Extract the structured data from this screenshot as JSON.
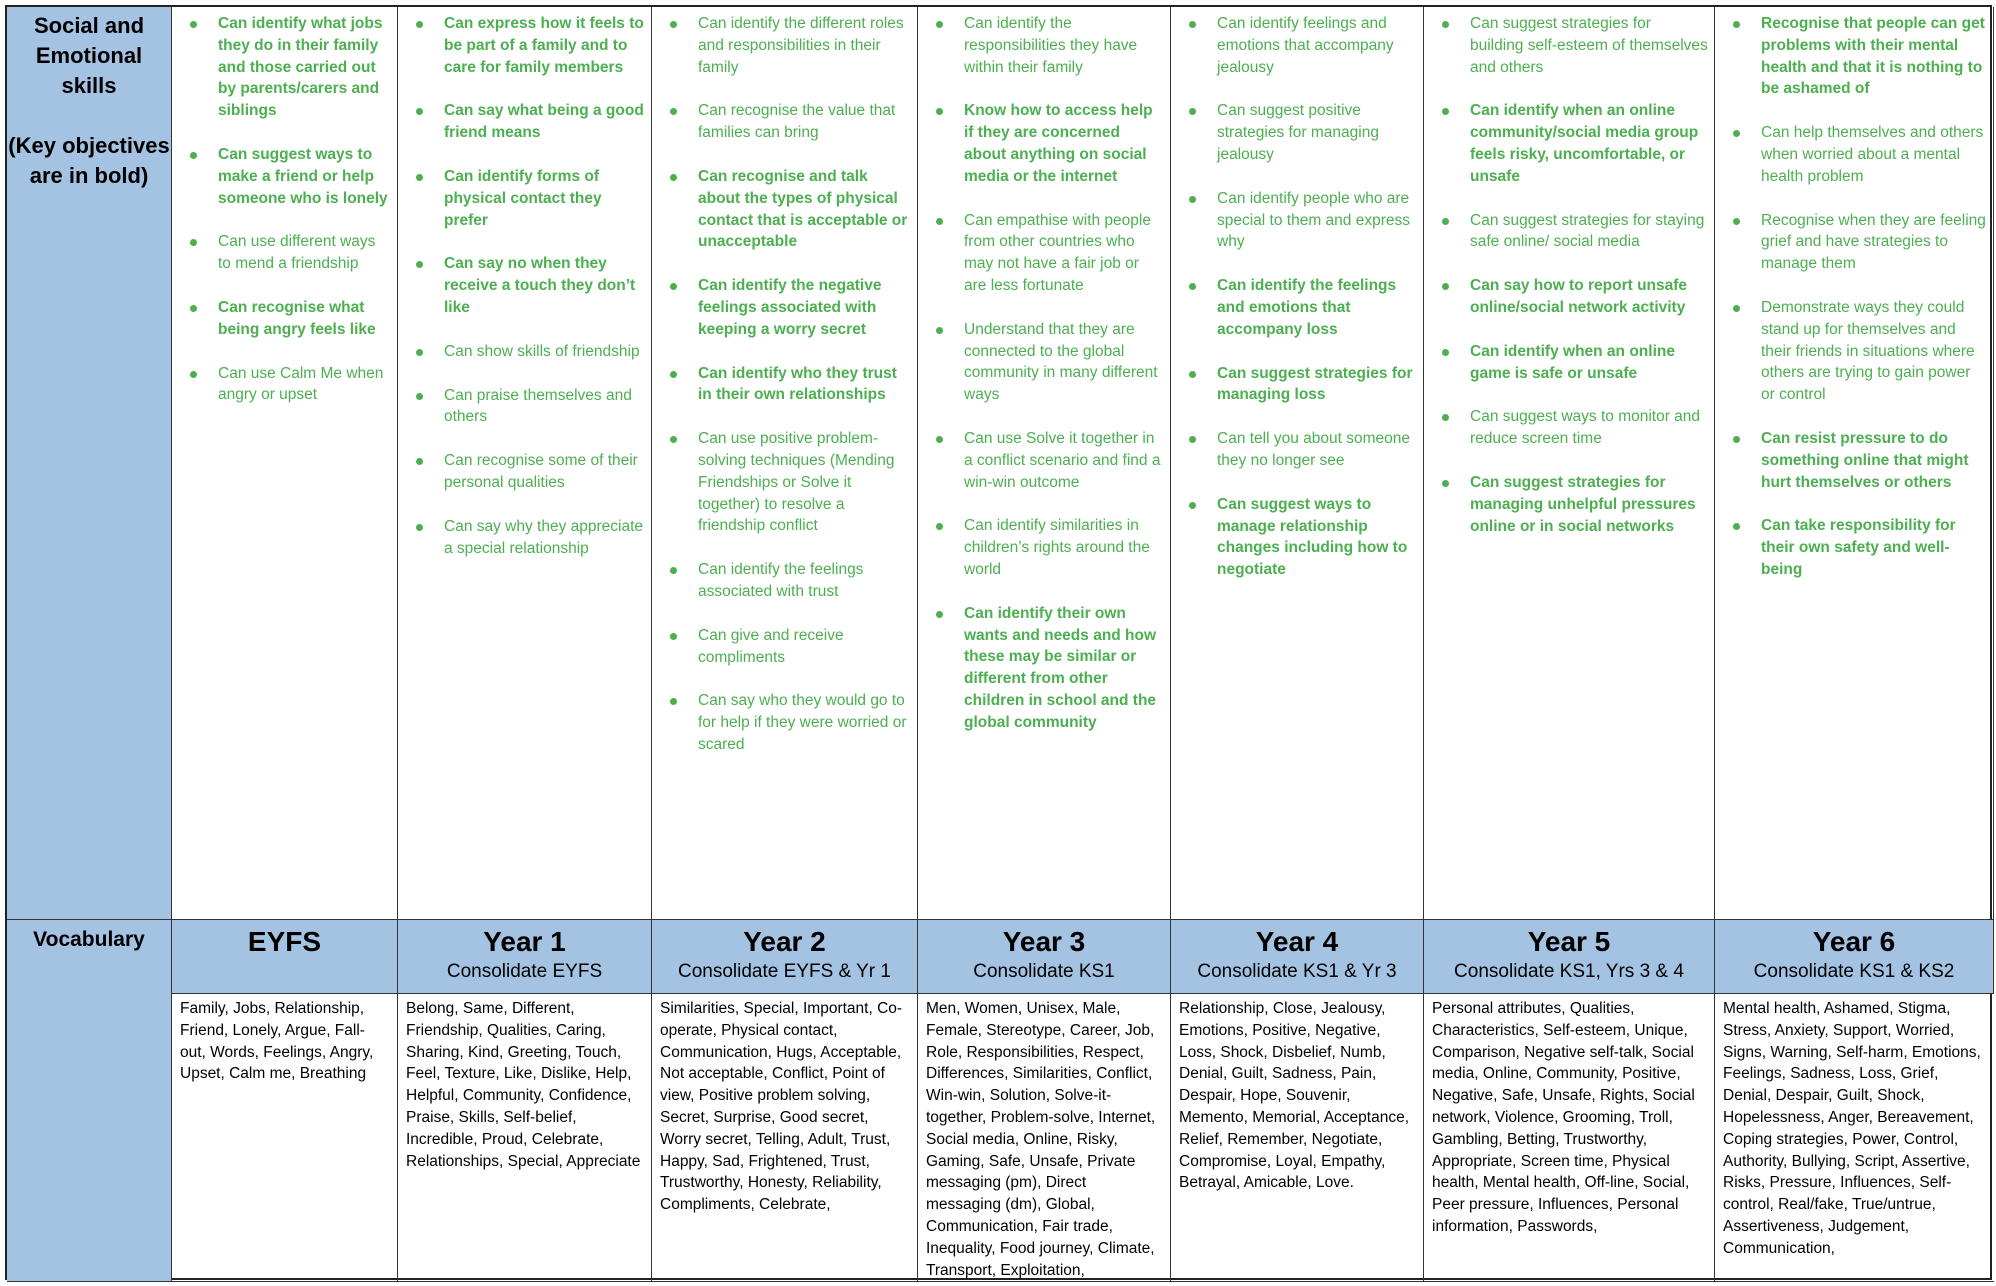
{
  "row_headers": {
    "skills_title": "Social and Emotional skills",
    "skills_note": "(Key objectives are in bold)",
    "vocabulary": "Vocabulary"
  },
  "colors": {
    "header_blue": "#a4c2e2",
    "objective_green": "#4caf50"
  },
  "columns": [
    {
      "year": "EYFS",
      "consolidate": "",
      "objectives": [
        {
          "text": "Can identify what jobs they do in their family and those carried out by parents/carers and siblings",
          "bold": true
        },
        {
          "text": "Can suggest ways to make a friend or help someone who is lonely",
          "bold": true
        },
        {
          "text": "Can use different ways to mend a friendship",
          "bold": false
        },
        {
          "text": "Can recognise what being angry feels like",
          "bold": true
        },
        {
          "text": "Can use Calm Me when angry or upset",
          "bold": false
        }
      ],
      "vocabulary": "Family, Jobs, Relationship, Friend, Lonely, Argue, Fall-out, Words, Feelings, Angry, Upset, Calm me, Breathing"
    },
    {
      "year": "Year 1",
      "consolidate": "Consolidate EYFS",
      "objectives": [
        {
          "text": "Can express how it feels to be part of a family and to care for family members",
          "bold": true
        },
        {
          "text": "Can say what being a good friend means",
          "bold": true
        },
        {
          "text": "Can identify forms of physical contact they prefer",
          "bold": true
        },
        {
          "text": "Can say no when they receive a touch they don’t like",
          "bold": true
        },
        {
          "text": "Can show skills of friendship",
          "bold": false
        },
        {
          "text": "Can praise themselves and others",
          "bold": false
        },
        {
          "text": "Can recognise some of their personal qualities",
          "bold": false
        },
        {
          "text": "Can say why they appreciate a special relationship",
          "bold": false
        }
      ],
      "vocabulary": "Belong, Same, Different, Friendship, Qualities, Caring, Sharing, Kind, Greeting, Touch, Feel, Texture, Like, Dislike, Help, Helpful, Community, Confidence, Praise, Skills, Self-belief, Incredible, Proud, Celebrate, Relationships, Special, Appreciate"
    },
    {
      "year": "Year 2",
      "consolidate": "Consolidate EYFS & Yr 1",
      "objectives": [
        {
          "text": "Can identify the different roles and responsibilities in their family",
          "bold": false
        },
        {
          "text": "Can recognise the value that families can bring",
          "bold": false
        },
        {
          "text": "Can recognise and talk about the types of physical contact that is acceptable or unacceptable",
          "bold": true
        },
        {
          "text": "Can identify the negative feelings associated with keeping a worry secret",
          "bold": true
        },
        {
          "text": "Can identify who they trust in their own relationships",
          "bold": true
        },
        {
          "text": "Can use positive problem-solving techniques (Mending Friendships or Solve it together) to resolve a friendship conflict",
          "bold": false
        },
        {
          "text": "Can identify the feelings associated with trust",
          "bold": false
        },
        {
          "text": "Can give and receive compliments",
          "bold": false
        },
        {
          "text": "Can say who they would go to for help if they were worried or scared",
          "bold": false
        }
      ],
      "vocabulary": "Similarities, Special, Important, Co-operate, Physical contact, Communication, Hugs, Acceptable, Not acceptable, Conflict, Point of view, Positive problem solving, Secret, Surprise, Good secret, Worry secret, Telling, Adult, Trust, Happy, Sad, Frightened, Trust, Trustworthy, Honesty, Reliability, Compliments, Celebrate,"
    },
    {
      "year": "Year 3",
      "consolidate": "Consolidate KS1",
      "objectives": [
        {
          "text": "Can identify the responsibilities they have within their family",
          "bold": false
        },
        {
          "text": "Know how to access help if they are concerned about anything on social media or the internet",
          "bold": true
        },
        {
          "text": "Can empathise with people from other countries who may not have a fair job or are less fortunate",
          "bold": false
        },
        {
          "text": "Understand that they are connected to the global community in many different ways",
          "bold": false
        },
        {
          "text": "Can use Solve it together in a conflict scenario and find a win-win outcome",
          "bold": false
        },
        {
          "text": "Can identify similarities in children’s rights around the world",
          "bold": false
        },
        {
          "text": "Can identify their own wants and needs and how these may be similar or different from other children in school and the global community",
          "bold": true
        }
      ],
      "vocabulary": "Men, Women, Unisex, Male, Female, Stereotype, Career, Job, Role, Responsibilities, Respect, Differences, Similarities, Conflict, Win-win, Solution, Solve-it-together, Problem-solve, Internet, Social media, Online, Risky, Gaming, Safe, Unsafe, Private messaging (pm), Direct messaging (dm), Global, Communication, Fair trade, Inequality, Food journey, Climate, Transport, Exploitation,"
    },
    {
      "year": "Year 4",
      "consolidate": "Consolidate KS1 & Yr 3",
      "objectives": [
        {
          "text": "Can identify feelings and emotions that accompany jealousy",
          "bold": false
        },
        {
          "text": "Can suggest positive strategies for managing jealousy",
          "bold": false
        },
        {
          "text": "Can identify people who are special to them and express why",
          "bold": false
        },
        {
          "text": "Can identify the feelings and emotions that accompany loss",
          "bold": true
        },
        {
          "text": "Can suggest strategies for managing loss",
          "bold": true
        },
        {
          "text": "Can tell you about someone they no longer see",
          "bold": false
        },
        {
          "text": "Can suggest ways to manage relationship changes including how to negotiate",
          "bold": true
        }
      ],
      "vocabulary": "Relationship, Close, Jealousy, Emotions, Positive, Negative, Loss, Shock, Disbelief, Numb, Denial, Guilt, Sadness, Pain, Despair, Hope, Souvenir, Memento, Memorial, Acceptance, Relief, Remember, Negotiate, Compromise, Loyal, Empathy, Betrayal, Amicable, Love."
    },
    {
      "year": "Year 5",
      "consolidate": "Consolidate KS1, Yrs 3 & 4",
      "objectives": [
        {
          "text": "Can suggest strategies for building self-esteem of themselves and others",
          "bold": false
        },
        {
          "text": "Can identify when an online community/social media group feels risky, uncomfortable, or unsafe",
          "bold": true
        },
        {
          "text": "Can suggest strategies for staying safe online/ social media",
          "bold": false
        },
        {
          "text": "Can say how to report unsafe online/social network activity",
          "bold": true
        },
        {
          "text": "Can identify when an online game is safe or unsafe",
          "bold": true
        },
        {
          "text": "Can suggest ways to monitor and reduce screen time",
          "bold": false
        },
        {
          "text": "Can suggest strategies for managing unhelpful pressures online or in social networks",
          "bold": true
        }
      ],
      "vocabulary": "Personal attributes, Qualities, Characteristics, Self-esteem, Unique, Comparison, Negative self-talk, Social media, Online, Community, Positive, Negative, Safe, Unsafe, Rights, Social network, Violence, Grooming, Troll, Gambling, Betting, Trustworthy, Appropriate, Screen time, Physical health, Mental health, Off-line, Social, Peer pressure, Influences, Personal information, Passwords,"
    },
    {
      "year": "Year 6",
      "consolidate": "Consolidate KS1 & KS2",
      "objectives": [
        {
          "text": "Recognise that people can get problems with their mental health and that it is nothing to be ashamed of",
          "bold": true
        },
        {
          "text": "Can help themselves and others when worried about a mental health problem",
          "bold": false
        },
        {
          "text": "Recognise when they are feeling grief and have strategies to manage them",
          "bold": false
        },
        {
          "text": "Demonstrate ways they could stand up for themselves and their friends in situations where others are trying to gain power or control",
          "bold": false
        },
        {
          "text": "Can resist pressure to do something online that might hurt themselves or others",
          "bold": true
        },
        {
          "text": "Can take responsibility for their own safety and well-being",
          "bold": true
        }
      ],
      "vocabulary": "Mental health, Ashamed, Stigma, Stress, Anxiety, Support, Worried, Signs, Warning, Self-harm, Emotions, Feelings, Sadness, Loss, Grief, Denial, Despair, Guilt, Shock, Hopelessness, Anger, Bereavement, Coping strategies, Power, Control, Authority, Bullying, Script, Assertive, Risks, Pressure, Influences, Self-control, Real/fake, True/untrue, Assertiveness, Judgement, Communication,"
    }
  ]
}
